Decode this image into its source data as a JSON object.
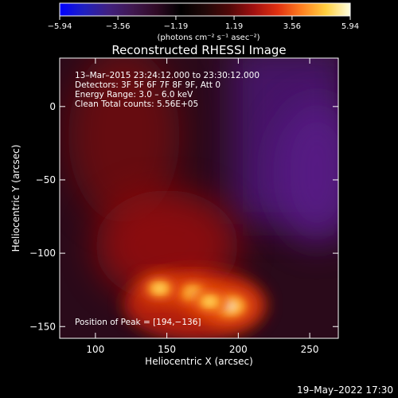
{
  "chart_data": {
    "type": "heatmap",
    "title": "Reconstructed RHESSI Image",
    "xlabel": "Heliocentric X (arcsec)",
    "ylabel": "Heliocentric Y (arcsec)",
    "xlim": [
      75,
      270
    ],
    "ylim": [
      -158,
      33
    ],
    "xticks": [
      {
        "value": 100,
        "label": "100"
      },
      {
        "value": 150,
        "label": "150"
      },
      {
        "value": 200,
        "label": "200"
      },
      {
        "value": 250,
        "label": "250"
      }
    ],
    "yticks": [
      {
        "value": 0,
        "label": "0"
      },
      {
        "value": -50,
        "label": "−50"
      },
      {
        "value": -100,
        "label": "−100"
      },
      {
        "value": -150,
        "label": "−150"
      }
    ],
    "colorbar": {
      "range": [
        -5.94,
        5.94
      ],
      "ticks": [
        {
          "value": -5.94,
          "label": "−5.94"
        },
        {
          "value": -3.56,
          "label": "−3.56"
        },
        {
          "value": -1.19,
          "label": "−1.19"
        },
        {
          "value": 1.19,
          "label": "1.19"
        },
        {
          "value": 3.56,
          "label": "3.56"
        },
        {
          "value": 5.94,
          "label": "5.94"
        }
      ],
      "units_label": "(photons cm⁻² s⁻¹ asec⁻²)",
      "colors": [
        "#0000ff",
        "#2020c0",
        "#402080",
        "#401850",
        "#300a25",
        "#000000",
        "#200808",
        "#500808",
        "#a01010",
        "#e03010",
        "#ff8020",
        "#ffd040",
        "#ffffe0"
      ]
    },
    "info_lines": [
      "13–Mar–2015 23:24:12.000 to 23:30:12.000",
      "Detectors: 3F 5F 6F 7F 8F 9F, Att 0",
      "Energy Range: 3.0 – 6.0 keV",
      "Clean     Total counts: 5.56E+05"
    ],
    "peak_label": "Position of Peak = [194,−136]",
    "peak": [
      194,
      -136
    ],
    "sources": [
      {
        "x": 194,
        "y": -136,
        "value": 5.94
      },
      {
        "x": 168,
        "y": -127,
        "value": 4.3
      },
      {
        "x": 145,
        "y": -124,
        "value": 3.9
      },
      {
        "x": 180,
        "y": -133,
        "value": 3.8
      }
    ],
    "timestamp": "19–May–2022 17:30"
  }
}
